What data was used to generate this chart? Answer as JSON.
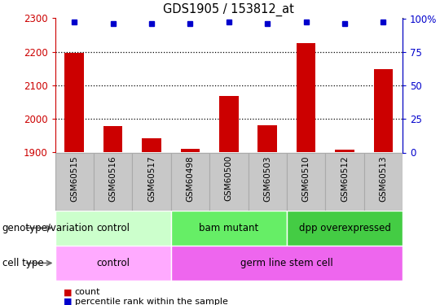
{
  "title_text": "GDS1905 / 153812_at",
  "samples": [
    "GSM60515",
    "GSM60516",
    "GSM60517",
    "GSM60498",
    "GSM60500",
    "GSM60503",
    "GSM60510",
    "GSM60512",
    "GSM60513"
  ],
  "counts": [
    2196,
    1978,
    1942,
    1910,
    2068,
    1980,
    2225,
    1908,
    2148
  ],
  "percentile_ranks": [
    97,
    96,
    96,
    96,
    97,
    96,
    97,
    96,
    97
  ],
  "ylim_left": [
    1900,
    2300
  ],
  "ylim_right": [
    0,
    100
  ],
  "yticks_left": [
    1900,
    2000,
    2100,
    2200,
    2300
  ],
  "yticks_right": [
    0,
    25,
    50,
    75,
    100
  ],
  "bar_color": "#cc0000",
  "dot_color": "#0000cc",
  "genotype_groups": [
    {
      "label": "control",
      "start": 0,
      "end": 2,
      "color": "#ccffcc"
    },
    {
      "label": "bam mutant",
      "start": 3,
      "end": 5,
      "color": "#66ee66"
    },
    {
      "label": "dpp overexpressed",
      "start": 6,
      "end": 8,
      "color": "#44cc44"
    }
  ],
  "celltype_groups": [
    {
      "label": "control",
      "start": 0,
      "end": 2,
      "color": "#ffaaff"
    },
    {
      "label": "germ line stem cell",
      "start": 3,
      "end": 8,
      "color": "#ee66ee"
    }
  ],
  "genotype_label": "genotype/variation",
  "celltype_label": "cell type",
  "legend_count": "count",
  "legend_percentile": "percentile rank within the sample",
  "tick_label_color_left": "#cc0000",
  "tick_label_color_right": "#0000cc",
  "grid_color": "#000000",
  "sample_box_color": "#c8c8c8",
  "sample_box_edge": "#aaaaaa"
}
